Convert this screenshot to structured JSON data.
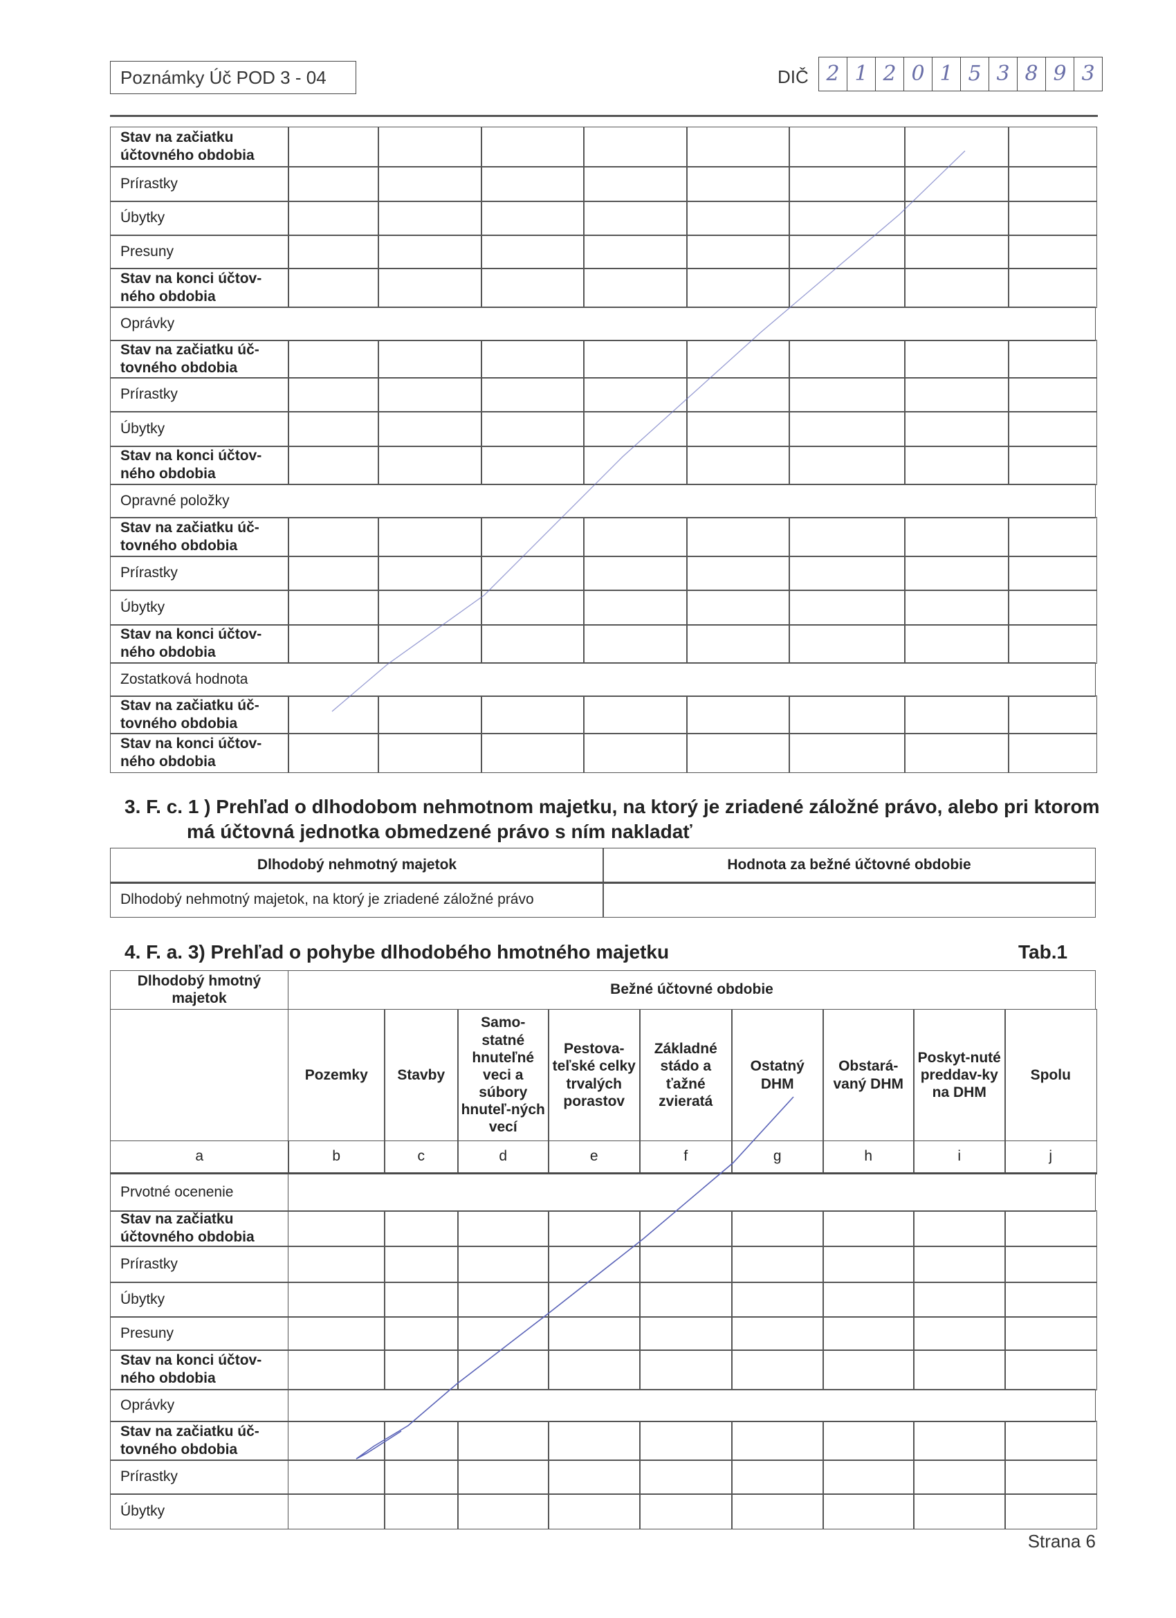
{
  "header": {
    "title": "Poznámky Úč POD 3 - 04",
    "dic_label": "DIČ",
    "dic_digits": [
      "2",
      "1",
      "2",
      "0",
      "1",
      "5",
      "3",
      "8",
      "9",
      "3"
    ]
  },
  "table1": {
    "rows": [
      {
        "label": "Stav na začiatku účtovného obdobia",
        "bold": true,
        "cells": true
      },
      {
        "label": "Prírastky",
        "bold": false,
        "cells": true
      },
      {
        "label": "Úbytky",
        "bold": false,
        "cells": true
      },
      {
        "label": "Presuny",
        "bold": false,
        "cells": true
      },
      {
        "label": "Stav na konci účtov-ného obdobia",
        "bold": true,
        "cells": true
      },
      {
        "label": "Oprávky",
        "bold": false,
        "cells": false
      },
      {
        "label": "Stav na začiatku úč-tovného obdobia",
        "bold": true,
        "cells": true
      },
      {
        "label": "Prírastky",
        "bold": false,
        "cells": true
      },
      {
        "label": "Úbytky",
        "bold": false,
        "cells": true
      },
      {
        "label": "Stav na konci účtov-ného obdobia",
        "bold": true,
        "cells": true
      },
      {
        "label": "Opravné položky",
        "bold": false,
        "cells": false
      },
      {
        "label": "Stav na začiatku úč-tovného obdobia",
        "bold": true,
        "cells": true
      },
      {
        "label": "Prírastky",
        "bold": false,
        "cells": true
      },
      {
        "label": "Úbytky",
        "bold": false,
        "cells": true
      },
      {
        "label": "Stav na konci účtov-ného obdobia",
        "bold": true,
        "cells": true
      },
      {
        "label": "Zostatková hodnota",
        "bold": false,
        "cells": false
      },
      {
        "label": "Stav na začiatku úč-tovného obdobia",
        "bold": true,
        "cells": true
      },
      {
        "label": "Stav na konci účtov-ného obdobia",
        "bold": true,
        "cells": true
      }
    ]
  },
  "section3": {
    "heading_line1": "3. F. c. 1 ) Prehľad o dlhodobom nehmotnom majetku, na ktorý je zriadené záložné  právo, alebo pri ktorom",
    "heading_line2": "má účtovná jednotka obmedzené právo s ním nakladať",
    "col1_header": "Dlhodobý nehmotný majetok",
    "col2_header": "Hodnota za bežné účtovné obdobie",
    "row_label": "Dlhodobý nehmotný majetok, na ktorý je zriadené záložné právo"
  },
  "section4": {
    "heading": "4. F. a. 3) Prehľad o pohybe dlhodobého  hmotného majetku",
    "tab_label": "Tab.1",
    "corner_header": "Dlhodobý hmotný majetok",
    "group_header": "Bežné účtovné obdobie",
    "columns": [
      "Pozemky",
      "Stavby",
      "Samo-statné hnuteľné veci a súbory hnuteľ-ných vecí",
      "Pestova-teľské celky trvalých porastov",
      "Základné stádo a ťažné zvieratá",
      "Ostatný DHM",
      "Obstará-vaný DHM",
      "Poskyt-nuté preddav-ky na DHM",
      "Spolu"
    ],
    "letters": [
      "a",
      "b",
      "c",
      "d",
      "e",
      "f",
      "g",
      "h",
      "i",
      "j"
    ],
    "rows": [
      {
        "label": "Prvotné ocenenie",
        "bold": false,
        "cells": false
      },
      {
        "label": "Stav na začiatku účtovného obdobia",
        "bold": true,
        "cells": true
      },
      {
        "label": "Prírastky",
        "bold": false,
        "cells": true
      },
      {
        "label": "Úbytky",
        "bold": false,
        "cells": true
      },
      {
        "label": "Presuny",
        "bold": false,
        "cells": true
      },
      {
        "label": "Stav na konci účtov-ného obdobia",
        "bold": true,
        "cells": true
      },
      {
        "label": "Oprávky",
        "bold": false,
        "cells": false
      },
      {
        "label": "Stav na začiatku úč-tovného obdobia",
        "bold": true,
        "cells": true
      },
      {
        "label": "Prírastky",
        "bold": false,
        "cells": true
      },
      {
        "label": "Úbytky",
        "bold": false,
        "cells": true
      }
    ]
  },
  "footer": {
    "page": "Strana 6"
  },
  "colors": {
    "pen": "#5a63b8",
    "lines": "#555555"
  }
}
